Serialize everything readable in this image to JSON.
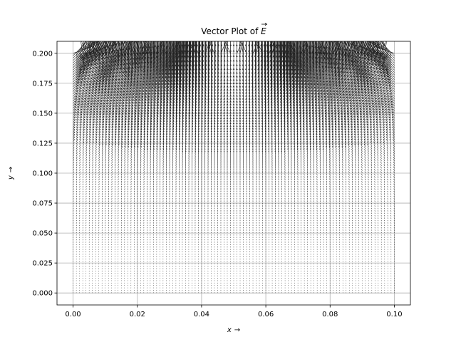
{
  "chart_data": {
    "type": "quiver",
    "title_main": "Vector Plot of ",
    "title_symbol": "E",
    "xlabel_var": "x",
    "ylabel_var": "y",
    "label_arrow": "→",
    "xlim": [
      -0.005,
      0.105
    ],
    "ylim": [
      -0.01,
      0.21
    ],
    "xticks": [
      0.0,
      0.02,
      0.04,
      0.06,
      0.08,
      0.1
    ],
    "xtick_labels": [
      "0.00",
      "0.02",
      "0.04",
      "0.06",
      "0.08",
      "0.10"
    ],
    "yticks": [
      0.0,
      0.025,
      0.05,
      0.075,
      0.1,
      0.125,
      0.15,
      0.175,
      0.2
    ],
    "ytick_labels": [
      "0.000",
      "0.025",
      "0.050",
      "0.075",
      "0.100",
      "0.125",
      "0.150",
      "0.175",
      "0.200"
    ],
    "grid": true,
    "field": {
      "description_of_values": "vector field of a charged strip at y=0.2 spanning x=0..0.1; vectors point upward and grow near the top edge and the strip ends",
      "x_range": [
        0.0,
        0.1
      ],
      "y_range": [
        0.0,
        0.2
      ],
      "x_count": 101,
      "y_count": 101,
      "source_segment": {
        "x": [
          0.0,
          0.1
        ],
        "y": 0.2
      }
    },
    "colors": {
      "arrows": "#000000",
      "grid": "#b0b0b0",
      "axes": "#000000",
      "background": "#ffffff"
    }
  }
}
